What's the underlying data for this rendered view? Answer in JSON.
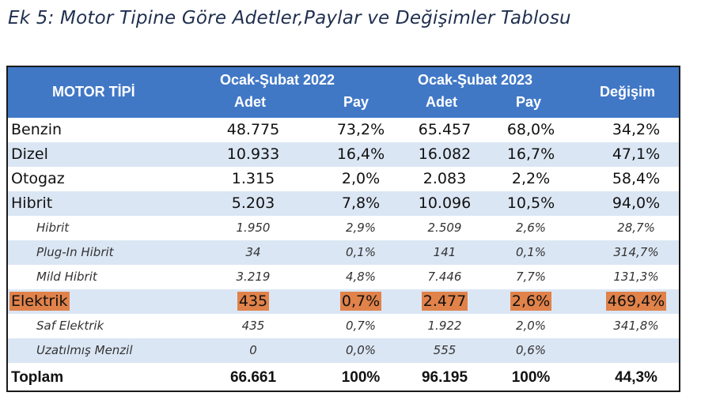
{
  "title": "Ek 5: Motor Tipine Göre Adetler,Paylar ve Değişimler Tablosu",
  "header": {
    "col_motor": "MOTOR TİPİ",
    "period_2022": "Ocak-Şubat 2022",
    "period_2023": "Ocak-Şubat 2023",
    "adet": "Adet",
    "pay": "Pay",
    "degisim": "Değişim"
  },
  "rows": [
    {
      "name": "Benzin",
      "a22": "48.775",
      "p22": "73,2%",
      "a23": "65.457",
      "p23": "68,0%",
      "chg": "34,2%"
    },
    {
      "name": "Dizel",
      "a22": "10.933",
      "p22": "16,4%",
      "a23": "16.082",
      "p23": "16,7%",
      "chg": "47,1%"
    },
    {
      "name": "Otogaz",
      "a22": "1.315",
      "p22": "2,0%",
      "a23": "2.083",
      "p23": "2,2%",
      "chg": "58,4%"
    },
    {
      "name": "Hibrit",
      "a22": "5.203",
      "p22": "7,8%",
      "a23": "10.096",
      "p23": "10,5%",
      "chg": "94,0%"
    },
    {
      "name": "Hibrit",
      "a22": "1.950",
      "p22": "2,9%",
      "a23": "2.509",
      "p23": "2,6%",
      "chg": "28,7%"
    },
    {
      "name": "Plug-In Hibrit",
      "a22": "34",
      "p22": "0,1%",
      "a23": "141",
      "p23": "0,1%",
      "chg": "314,7%"
    },
    {
      "name": "Mild Hibrit",
      "a22": "3.219",
      "p22": "4,8%",
      "a23": "7.446",
      "p23": "7,7%",
      "chg": "131,3%"
    },
    {
      "name": "Elektrik",
      "a22": "435",
      "p22": "0,7%",
      "a23": "2.477",
      "p23": "2,6%",
      "chg": "469,4%"
    },
    {
      "name": "Saf Elektrik",
      "a22": "435",
      "p22": "0,7%",
      "a23": "1.922",
      "p23": "2,0%",
      "chg": "341,8%"
    },
    {
      "name": "Uzatılmış Menzil",
      "a22": "0",
      "p22": "0,0%",
      "a23": "555",
      "p23": "0,6%",
      "chg": ""
    },
    {
      "name": "Toplam",
      "a22": "66.661",
      "p22": "100%",
      "a23": "96.195",
      "p23": "100%",
      "chg": "44,3%"
    }
  ],
  "colors": {
    "header_bg": "#4178c6",
    "row_alt": "#dbe6f4",
    "highlight": "#e0824a"
  }
}
